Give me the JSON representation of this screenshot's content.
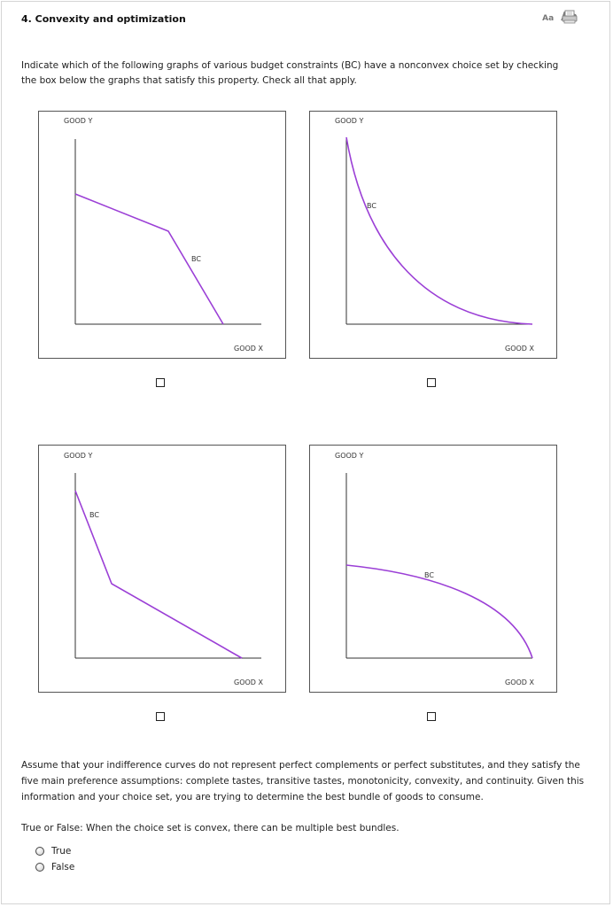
{
  "question": {
    "title": "4. Convexity and optimization",
    "text_size_small": "Aa",
    "text_size_large": "Aa",
    "print_icon": "printer-icon"
  },
  "intro": "Indicate which of the following graphs of various budget constraints (BC) have a nonconvex choice set by checking the box below the graphs that satisfy this property. Check all that apply.",
  "graphs": [
    {
      "y_label": "GOOD Y",
      "x_label": "GOOD X",
      "curve_label": "BC",
      "checked": false
    },
    {
      "y_label": "GOOD Y",
      "x_label": "GOOD X",
      "curve_label": "BC",
      "checked": false
    },
    {
      "y_label": "GOOD Y",
      "x_label": "GOOD X",
      "curve_label": "BC",
      "checked": false
    },
    {
      "y_label": "GOOD Y",
      "x_label": "GOOD X",
      "curve_label": "BC",
      "checked": false
    }
  ],
  "curve_color": "#9b3fd6",
  "paragraph": "Assume that your indifference curves do not represent perfect complements or perfect substitutes, and they satisfy the five main preference assumptions: complete tastes, transitive tastes, monotonicity, convexity, and continuity. Given this information and your choice set, you are trying to determine the best bundle of goods to consume.",
  "tf_question": "True or False: When the choice set is convex, there can be multiple best bundles.",
  "options": [
    "True",
    "False"
  ]
}
